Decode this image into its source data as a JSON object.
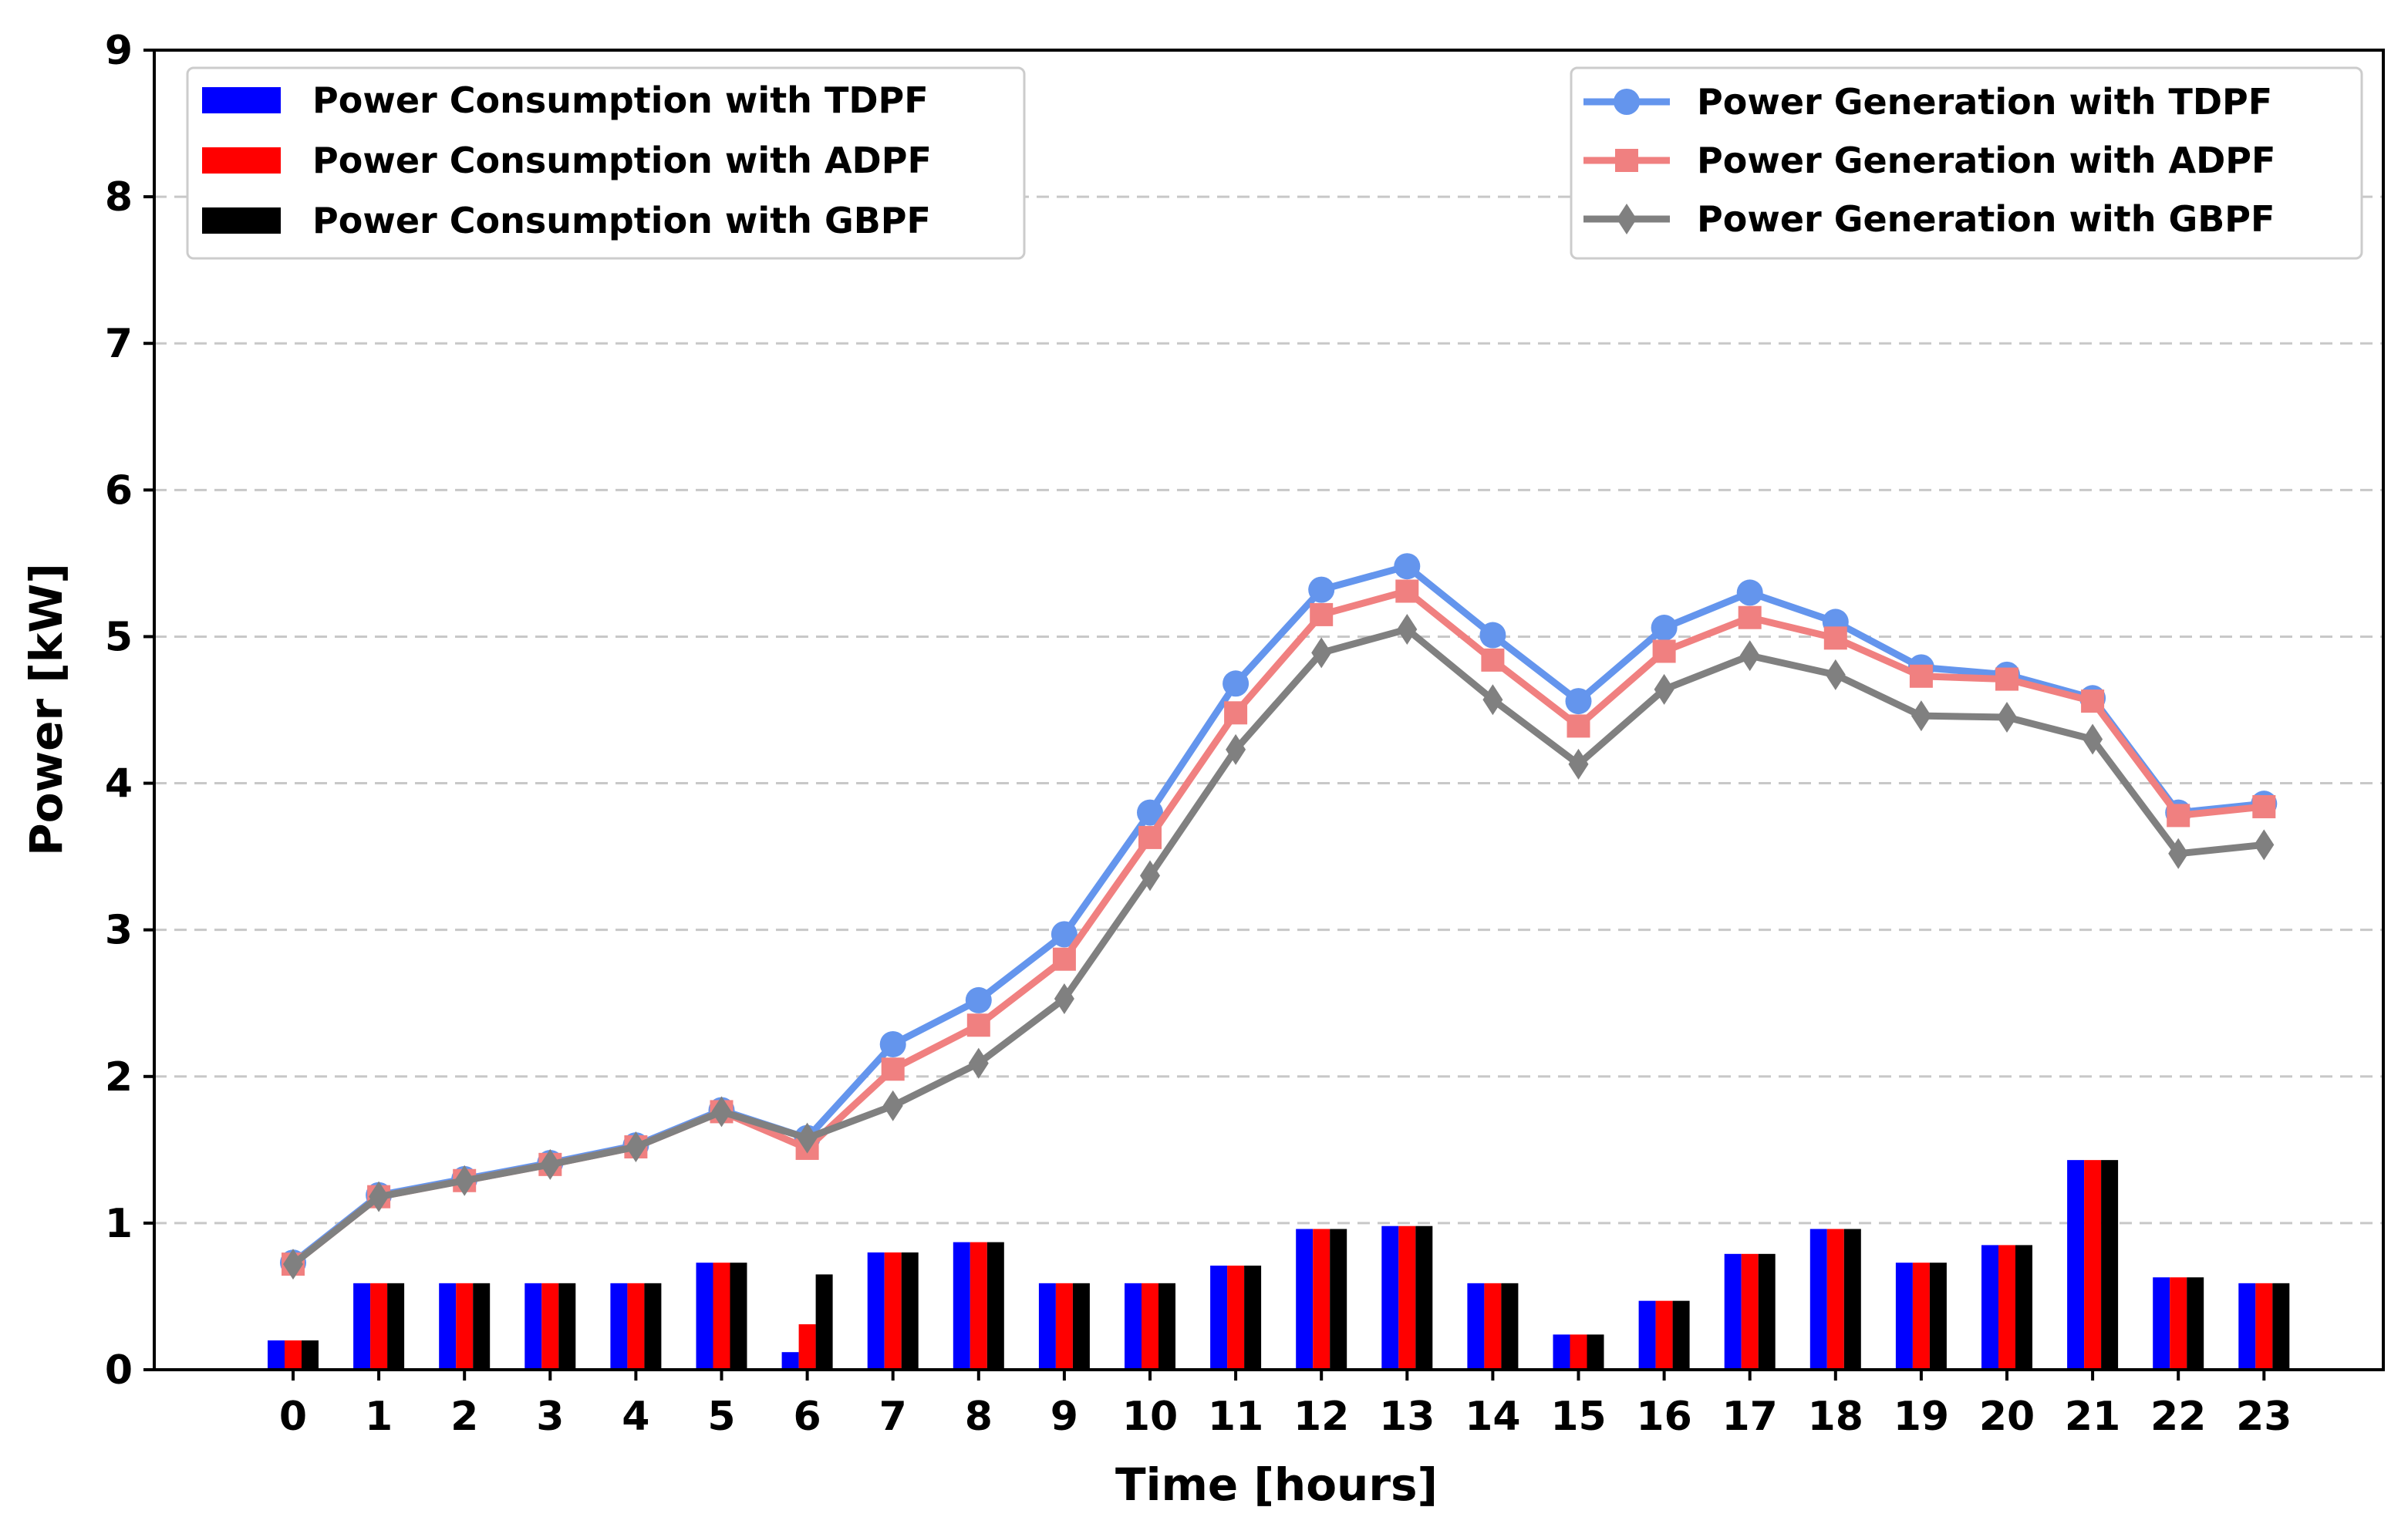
{
  "chart_data": {
    "type": "bar+line",
    "title": "",
    "xlabel": "Time [hours]",
    "ylabel": "Power [kW]",
    "ylim": [
      0,
      9
    ],
    "yticks": [
      0,
      1,
      2,
      3,
      4,
      5,
      6,
      7,
      8,
      9
    ],
    "grid": "horizontal dashed",
    "categories": [
      "0",
      "1",
      "2",
      "3",
      "4",
      "5",
      "6",
      "7",
      "8",
      "9",
      "10",
      "11",
      "12",
      "13",
      "14",
      "15",
      "16",
      "17",
      "18",
      "19",
      "20",
      "21",
      "22",
      "23"
    ],
    "bar_series": [
      {
        "name": "Power Consumption with TDPF",
        "color": "#0000ff",
        "values": [
          0.2,
          0.59,
          0.59,
          0.59,
          0.59,
          0.73,
          0.12,
          0.8,
          0.87,
          0.59,
          0.59,
          0.71,
          0.96,
          0.98,
          0.59,
          0.24,
          0.47,
          0.79,
          0.96,
          0.73,
          0.85,
          1.43,
          0.63,
          0.59
        ]
      },
      {
        "name": "Power Consumption with ADPF",
        "color": "#ff0000",
        "values": [
          0.2,
          0.59,
          0.59,
          0.59,
          0.59,
          0.73,
          0.31,
          0.8,
          0.87,
          0.59,
          0.59,
          0.71,
          0.96,
          0.98,
          0.59,
          0.24,
          0.47,
          0.79,
          0.96,
          0.73,
          0.85,
          1.43,
          0.63,
          0.59
        ]
      },
      {
        "name": "Power Consumption with GBPF",
        "color": "#000000",
        "values": [
          0.2,
          0.59,
          0.59,
          0.59,
          0.59,
          0.73,
          0.65,
          0.8,
          0.87,
          0.59,
          0.59,
          0.71,
          0.96,
          0.98,
          0.59,
          0.24,
          0.47,
          0.79,
          0.96,
          0.73,
          0.85,
          1.43,
          0.63,
          0.59
        ]
      }
    ],
    "line_series": [
      {
        "name": "Power Generation with TDPF",
        "color": "#6495ed",
        "marker": "circle",
        "values": [
          0.73,
          1.19,
          1.3,
          1.41,
          1.53,
          1.77,
          1.58,
          2.22,
          2.52,
          2.97,
          3.8,
          4.68,
          5.32,
          5.48,
          5.01,
          4.56,
          5.06,
          5.3,
          5.1,
          4.79,
          4.74,
          4.58,
          3.8,
          3.86
        ]
      },
      {
        "name": "Power Generation with ADPF",
        "color": "#f08080",
        "marker": "square",
        "values": [
          0.72,
          1.18,
          1.29,
          1.4,
          1.52,
          1.76,
          1.51,
          2.05,
          2.35,
          2.8,
          3.63,
          4.48,
          5.15,
          5.31,
          4.84,
          4.39,
          4.9,
          5.13,
          4.99,
          4.73,
          4.71,
          4.56,
          3.78,
          3.84
        ]
      },
      {
        "name": "Power Generation with GBPF",
        "color": "#808080",
        "marker": "diamond",
        "values": [
          0.72,
          1.18,
          1.29,
          1.4,
          1.52,
          1.76,
          1.58,
          1.8,
          2.09,
          2.53,
          3.37,
          4.23,
          4.89,
          5.05,
          4.57,
          4.13,
          4.64,
          4.87,
          4.74,
          4.46,
          4.45,
          4.3,
          3.52,
          3.58
        ]
      }
    ],
    "legend": [
      {
        "position": "top-left",
        "entries": [
          "Power Consumption with TDPF",
          "Power Consumption with ADPF",
          "Power Consumption with GBPF"
        ]
      },
      {
        "position": "top-right",
        "entries": [
          "Power Generation with TDPF",
          "Power Generation with ADPF",
          "Power Generation with GBPF"
        ]
      }
    ]
  }
}
